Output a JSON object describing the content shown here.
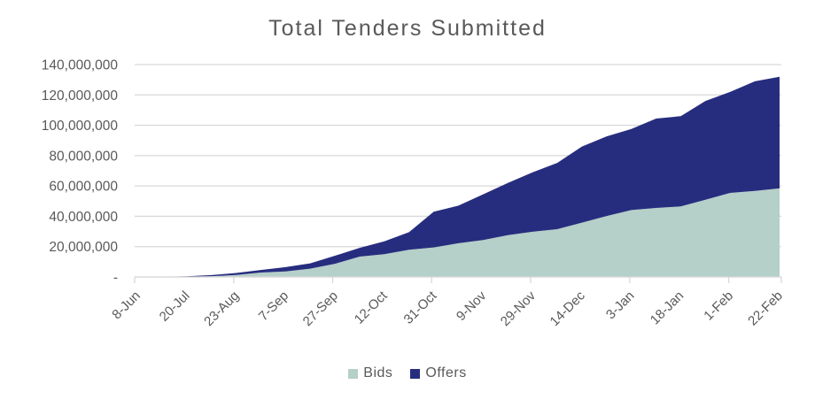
{
  "header": {
    "title": "Total Tenders Submitted"
  },
  "chart_data": {
    "type": "area",
    "stacked": true,
    "title": "Total Tenders Submitted",
    "xlabel": "",
    "ylabel": "",
    "ylim": [
      0,
      140000000
    ],
    "y_tick_step": 20000000,
    "zero_tick_label": "-",
    "grid": "horizontal",
    "legend_position": "bottom",
    "x_labels": [
      "8-Jun",
      "20-Jul",
      "23-Aug",
      "7-Sep",
      "27-Sep",
      "12-Oct",
      "31-Oct",
      "9-Nov",
      "29-Nov",
      "14-Dec",
      "3-Jan",
      "18-Jan",
      "1-Feb",
      "22-Feb"
    ],
    "label_every": 2,
    "series": [
      {
        "name": "Bids",
        "color": "#b5cfc9",
        "values": [
          0,
          100000,
          200000,
          500000,
          1300000,
          2900000,
          3600000,
          5500000,
          8700000,
          13400000,
          15000000,
          17900000,
          19500000,
          22200000,
          24300000,
          27600000,
          29800000,
          31500000,
          35800000,
          40200000,
          44100000,
          45500000,
          46500000,
          50900000,
          55400000,
          56700000,
          58400000
        ]
      },
      {
        "name": "Offers",
        "color": "#272d7e",
        "values": [
          0,
          50000,
          200000,
          700000,
          1300000,
          1700000,
          2900000,
          3500000,
          5300000,
          5800000,
          8500000,
          11600000,
          23500000,
          24800000,
          30200000,
          34400000,
          39200000,
          43700000,
          50200000,
          52500000,
          53500000,
          58900000,
          59500000,
          65100000,
          66600000,
          72300000,
          73600000
        ]
      }
    ],
    "colors": {
      "text": "#595959",
      "gridline": "#d9d9d9",
      "background": "#ffffff"
    }
  }
}
